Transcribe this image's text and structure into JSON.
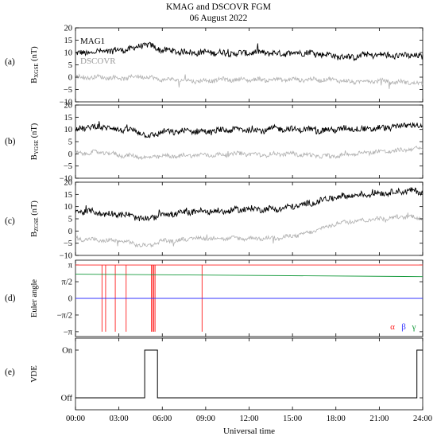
{
  "header": {
    "title": "KMAG and DSCOVR FGM",
    "date": "06 August 2022"
  },
  "colors": {
    "mag1": "#000000",
    "dscovr": "#b0b0b0",
    "alpha": "#ff2020",
    "beta": "#3333ff",
    "gamma": "#159a3c"
  },
  "xaxis": {
    "label": "Universal time",
    "range": [
      "00:00",
      "24:00"
    ],
    "ticks": [
      "00:00",
      "03:00",
      "06:00",
      "09:00",
      "12:00",
      "15:00",
      "18:00",
      "21:00",
      "24:00"
    ]
  },
  "chart_data": [
    {
      "type": "line",
      "panel_label": "(a)",
      "ylabel": "B",
      "ylabel_sub": "XGSE",
      "ylabel_unit": " (nT)",
      "ylim": [
        -10,
        20
      ],
      "yticks": [
        "20",
        "15",
        "10",
        "5",
        "0",
        "−5",
        "−10"
      ],
      "annotations": [
        "MAG1",
        "DSCOVR"
      ],
      "series": [
        {
          "name": "MAG1",
          "color": "#000000",
          "x": [
            "00:00",
            "01:00",
            "02:00",
            "03:00",
            "04:00",
            "04:30",
            "05:00",
            "05:30",
            "06:00",
            "07:00",
            "08:00",
            "09:00",
            "10:00",
            "11:00",
            "12:00",
            "13:00",
            "14:00",
            "15:00",
            "16:00",
            "17:00",
            "18:00",
            "19:00",
            "20:00",
            "21:00",
            "22:00",
            "23:00",
            "24:00"
          ],
          "y": [
            9.5,
            10,
            10.5,
            11,
            11.5,
            13,
            13,
            12,
            11,
            10.5,
            10,
            10,
            10,
            9.5,
            10,
            10,
            9.5,
            10,
            10,
            9.5,
            8.5,
            8,
            9,
            9,
            8.5,
            9,
            8
          ]
        },
        {
          "name": "DSCOVR",
          "color": "#b0b0b0",
          "x": [
            "00:00",
            "01:00",
            "02:00",
            "03:00",
            "04:00",
            "04:30",
            "05:00",
            "05:30",
            "06:00",
            "07:00",
            "08:00",
            "09:00",
            "10:00",
            "11:00",
            "12:00",
            "13:00",
            "14:00",
            "15:00",
            "16:00",
            "17:00",
            "18:00",
            "19:00",
            "20:00",
            "21:00",
            "22:00",
            "23:00",
            "24:00"
          ],
          "y": [
            0,
            0,
            0,
            -0.5,
            0,
            0.5,
            0,
            -0.5,
            -1,
            -1,
            -1.5,
            -1.5,
            -1,
            -1,
            -1,
            -1,
            -1,
            -1,
            -1,
            -1,
            -1,
            -2,
            -1.5,
            -1.5,
            -2,
            -2,
            -3
          ]
        }
      ]
    },
    {
      "type": "line",
      "panel_label": "(b)",
      "ylabel": "B",
      "ylabel_sub": "YGSE",
      "ylabel_unit": " (nT)",
      "ylim": [
        -10,
        20
      ],
      "yticks": [
        "20",
        "15",
        "10",
        "5",
        "0",
        "−5",
        "−10"
      ],
      "series": [
        {
          "name": "MAG1",
          "color": "#000000",
          "x": [
            "00:00",
            "01:00",
            "02:00",
            "03:00",
            "04:00",
            "04:30",
            "05:00",
            "05:30",
            "06:00",
            "07:00",
            "08:00",
            "09:00",
            "10:00",
            "11:00",
            "12:00",
            "13:00",
            "14:00",
            "15:00",
            "16:00",
            "17:00",
            "18:00",
            "19:00",
            "20:00",
            "21:00",
            "22:00",
            "23:00",
            "24:00"
          ],
          "y": [
            10,
            11,
            11,
            10,
            9.5,
            9,
            7,
            8,
            9,
            9,
            9.5,
            9,
            9.5,
            10,
            10,
            9.5,
            10.5,
            10,
            10,
            9.5,
            10,
            10.5,
            10,
            10.5,
            11,
            12,
            11
          ]
        },
        {
          "name": "DSCOVR",
          "color": "#b0b0b0",
          "x": [
            "00:00",
            "01:00",
            "02:00",
            "03:00",
            "04:00",
            "04:30",
            "05:00",
            "05:30",
            "06:00",
            "07:00",
            "08:00",
            "09:00",
            "10:00",
            "11:00",
            "12:00",
            "13:00",
            "14:00",
            "15:00",
            "16:00",
            "17:00",
            "18:00",
            "19:00",
            "20:00",
            "21:00",
            "22:00",
            "23:00",
            "24:00"
          ],
          "y": [
            0,
            0.5,
            0.5,
            -0.5,
            -1,
            -1,
            -2,
            -1,
            -1,
            -1,
            -0.5,
            -0.5,
            -0.5,
            0,
            0,
            -0.5,
            0,
            0,
            -0.5,
            -1,
            -1,
            0,
            0.5,
            1,
            1,
            2,
            2
          ]
        }
      ]
    },
    {
      "type": "line",
      "panel_label": "(c)",
      "ylabel": "B",
      "ylabel_sub": "ZGSE",
      "ylabel_unit": " (nT)",
      "ylim": [
        -10,
        20
      ],
      "yticks": [
        "20",
        "15",
        "10",
        "5",
        "0",
        "−5",
        "−10"
      ],
      "series": [
        {
          "name": "MAG1",
          "color": "#000000",
          "x": [
            "00:00",
            "01:00",
            "02:00",
            "03:00",
            "04:00",
            "04:30",
            "05:00",
            "05:30",
            "06:00",
            "07:00",
            "08:00",
            "09:00",
            "10:00",
            "11:00",
            "12:00",
            "13:00",
            "14:00",
            "15:00",
            "16:00",
            "17:00",
            "18:00",
            "19:00",
            "20:00",
            "21:00",
            "22:00",
            "23:00",
            "24:00"
          ],
          "y": [
            8,
            8,
            7,
            7,
            6,
            5,
            5,
            6,
            7,
            7,
            8,
            8,
            8,
            8.5,
            9,
            9,
            9,
            10,
            11,
            12.5,
            14,
            14.5,
            15,
            15.5,
            16,
            16.5,
            16
          ]
        },
        {
          "name": "DSCOVR",
          "color": "#b0b0b0",
          "x": [
            "00:00",
            "01:00",
            "02:00",
            "03:00",
            "04:00",
            "04:30",
            "05:00",
            "05:30",
            "06:00",
            "07:00",
            "08:00",
            "09:00",
            "10:00",
            "11:00",
            "12:00",
            "13:00",
            "14:00",
            "15:00",
            "16:00",
            "17:00",
            "18:00",
            "19:00",
            "20:00",
            "21:00",
            "22:00",
            "23:00",
            "24:00"
          ],
          "y": [
            -3,
            -3.5,
            -4,
            -4,
            -5,
            -6,
            -6,
            -5,
            -4,
            -4,
            -3,
            -3,
            -3,
            -3,
            -3,
            -3,
            -3,
            -2,
            -1,
            1,
            3,
            4,
            4.5,
            5,
            5.5,
            6,
            5
          ]
        }
      ]
    },
    {
      "type": "line",
      "panel_label": "(d)",
      "ylabel": "Euler angle",
      "ylim_radians": [
        -3.6,
        3.6
      ],
      "yticks": [
        "π",
        "π/2",
        "0",
        "−π/2",
        "−π"
      ],
      "legend": [
        "α",
        "β",
        "γ"
      ],
      "legend_position": "bottom-right",
      "series": [
        {
          "name": "α",
          "color": "#ff2020",
          "x": [
            "00:00",
            "24:00"
          ],
          "y": [
            3.14159,
            3.14159
          ],
          "wraps_to_minus_pi_at": [
            "01:50",
            "02:05",
            "02:45",
            "03:30",
            "05:15",
            "05:20",
            "05:25",
            "05:30",
            "08:45"
          ]
        },
        {
          "name": "β",
          "color": "#3333ff",
          "x": [
            "00:00",
            "24:00"
          ],
          "y": [
            0,
            0
          ]
        },
        {
          "name": "γ",
          "color": "#159a3c",
          "x": [
            "00:00",
            "24:00"
          ],
          "y": [
            2.28,
            2.05
          ]
        }
      ]
    },
    {
      "type": "line",
      "panel_label": "(e)",
      "ylabel": "VDE",
      "yticks": [
        "On",
        "Off"
      ],
      "series": [
        {
          "name": "VDE",
          "color": "#000000",
          "x": [
            "00:00",
            "04:47",
            "04:47",
            "05:40",
            "05:40",
            "23:36",
            "23:36",
            "24:00"
          ],
          "y": [
            0,
            0,
            1,
            1,
            0,
            0,
            1,
            1
          ]
        }
      ]
    }
  ]
}
